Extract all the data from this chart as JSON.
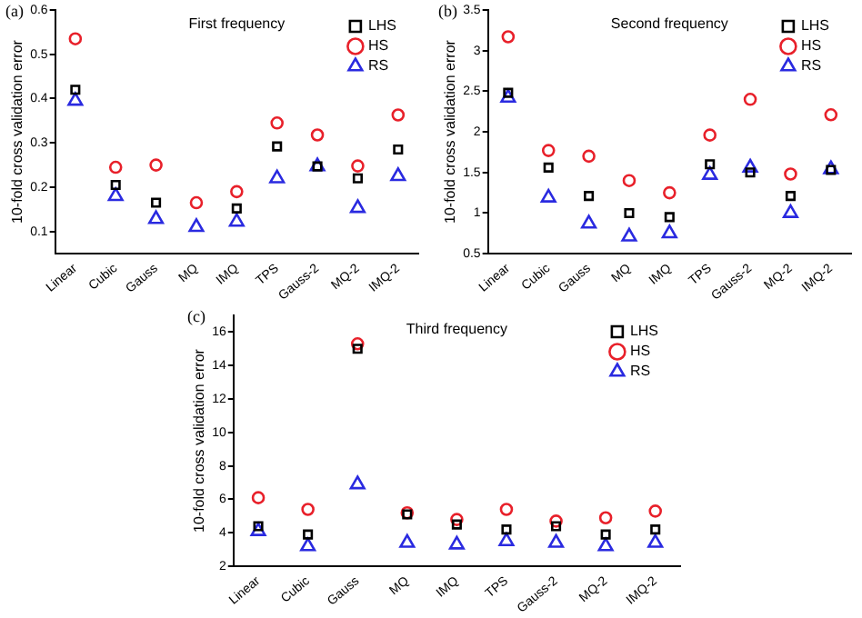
{
  "chart_data": [
    {
      "type": "scatter",
      "title": "First frequency",
      "ylabel": "10-fold cross validation error",
      "annotations": [
        "(a)"
      ],
      "categories": [
        "Linear",
        "Cubic",
        "Gauss",
        "MQ",
        "IMQ",
        "TPS",
        "Gauss-2",
        "MQ-2",
        "IMQ-2"
      ],
      "ylim": [
        0.05,
        0.6
      ],
      "yticks": [
        0.1,
        0.2,
        0.3,
        0.4,
        0.5,
        0.6
      ],
      "grid": false,
      "legend": "top right",
      "series": [
        {
          "name": "LHS",
          "color": "#000000",
          "marker": "square",
          "values": [
            0.42,
            0.205,
            0.165,
            null,
            0.152,
            0.292,
            0.247,
            0.22,
            0.285
          ]
        },
        {
          "name": "HS",
          "color": "#e8202a",
          "marker": "circle",
          "values": [
            0.535,
            0.245,
            0.25,
            0.165,
            0.19,
            0.345,
            0.318,
            0.248,
            0.363
          ]
        },
        {
          "name": "RS",
          "color": "#2a2ae0",
          "marker": "triangle",
          "values": [
            0.395,
            0.18,
            0.128,
            0.11,
            0.122,
            0.22,
            0.247,
            0.153,
            0.225
          ]
        }
      ]
    },
    {
      "type": "scatter",
      "title": "Second frequency",
      "ylabel": "10-fold cross validation error",
      "annotations": [
        "(b)"
      ],
      "categories": [
        "Linear",
        "Cubic",
        "Gauss",
        "MQ",
        "IMQ",
        "TPS",
        "Gauss-2",
        "MQ-2",
        "IMQ-2"
      ],
      "ylim": [
        0.5,
        3.5
      ],
      "yticks": [
        0.5,
        1.0,
        1.5,
        2.0,
        2.5,
        3.0,
        3.5
      ],
      "grid": false,
      "legend": "top right",
      "series": [
        {
          "name": "LHS",
          "color": "#000000",
          "marker": "square",
          "values": [
            2.48,
            1.56,
            1.21,
            1.0,
            0.95,
            1.6,
            1.5,
            1.21,
            1.53
          ]
        },
        {
          "name": "HS",
          "color": "#e8202a",
          "marker": "circle",
          "values": [
            3.17,
            1.77,
            1.7,
            1.4,
            1.25,
            1.96,
            2.4,
            1.48,
            2.21
          ]
        },
        {
          "name": "RS",
          "color": "#2a2ae0",
          "marker": "triangle",
          "values": [
            2.42,
            1.19,
            0.87,
            0.71,
            0.75,
            1.47,
            1.56,
            1.0,
            1.54
          ]
        }
      ]
    },
    {
      "type": "scatter",
      "title": "Third frequency",
      "ylabel": "10-fold cross validation error",
      "annotations": [
        "(c)"
      ],
      "categories": [
        "Linear",
        "Cubic",
        "Gauss",
        "MQ",
        "IMQ",
        "TPS",
        "Gauss-2",
        "MQ-2",
        "IMQ-2"
      ],
      "ylim": [
        2,
        17
      ],
      "yticks": [
        2,
        4,
        6,
        8,
        10,
        12,
        14,
        16
      ],
      "grid": false,
      "legend": "top right",
      "series": [
        {
          "name": "LHS",
          "color": "#000000",
          "marker": "square",
          "values": [
            4.4,
            3.9,
            15.0,
            5.1,
            4.5,
            4.2,
            4.4,
            3.9,
            4.2
          ]
        },
        {
          "name": "HS",
          "color": "#e8202a",
          "marker": "circle",
          "values": [
            6.1,
            5.4,
            15.3,
            5.2,
            4.8,
            5.4,
            4.7,
            4.9,
            5.3
          ]
        },
        {
          "name": "RS",
          "color": "#2a2ae0",
          "marker": "triangle",
          "values": [
            4.1,
            3.2,
            6.9,
            3.4,
            3.3,
            3.5,
            3.4,
            3.2,
            3.4
          ]
        }
      ]
    }
  ]
}
